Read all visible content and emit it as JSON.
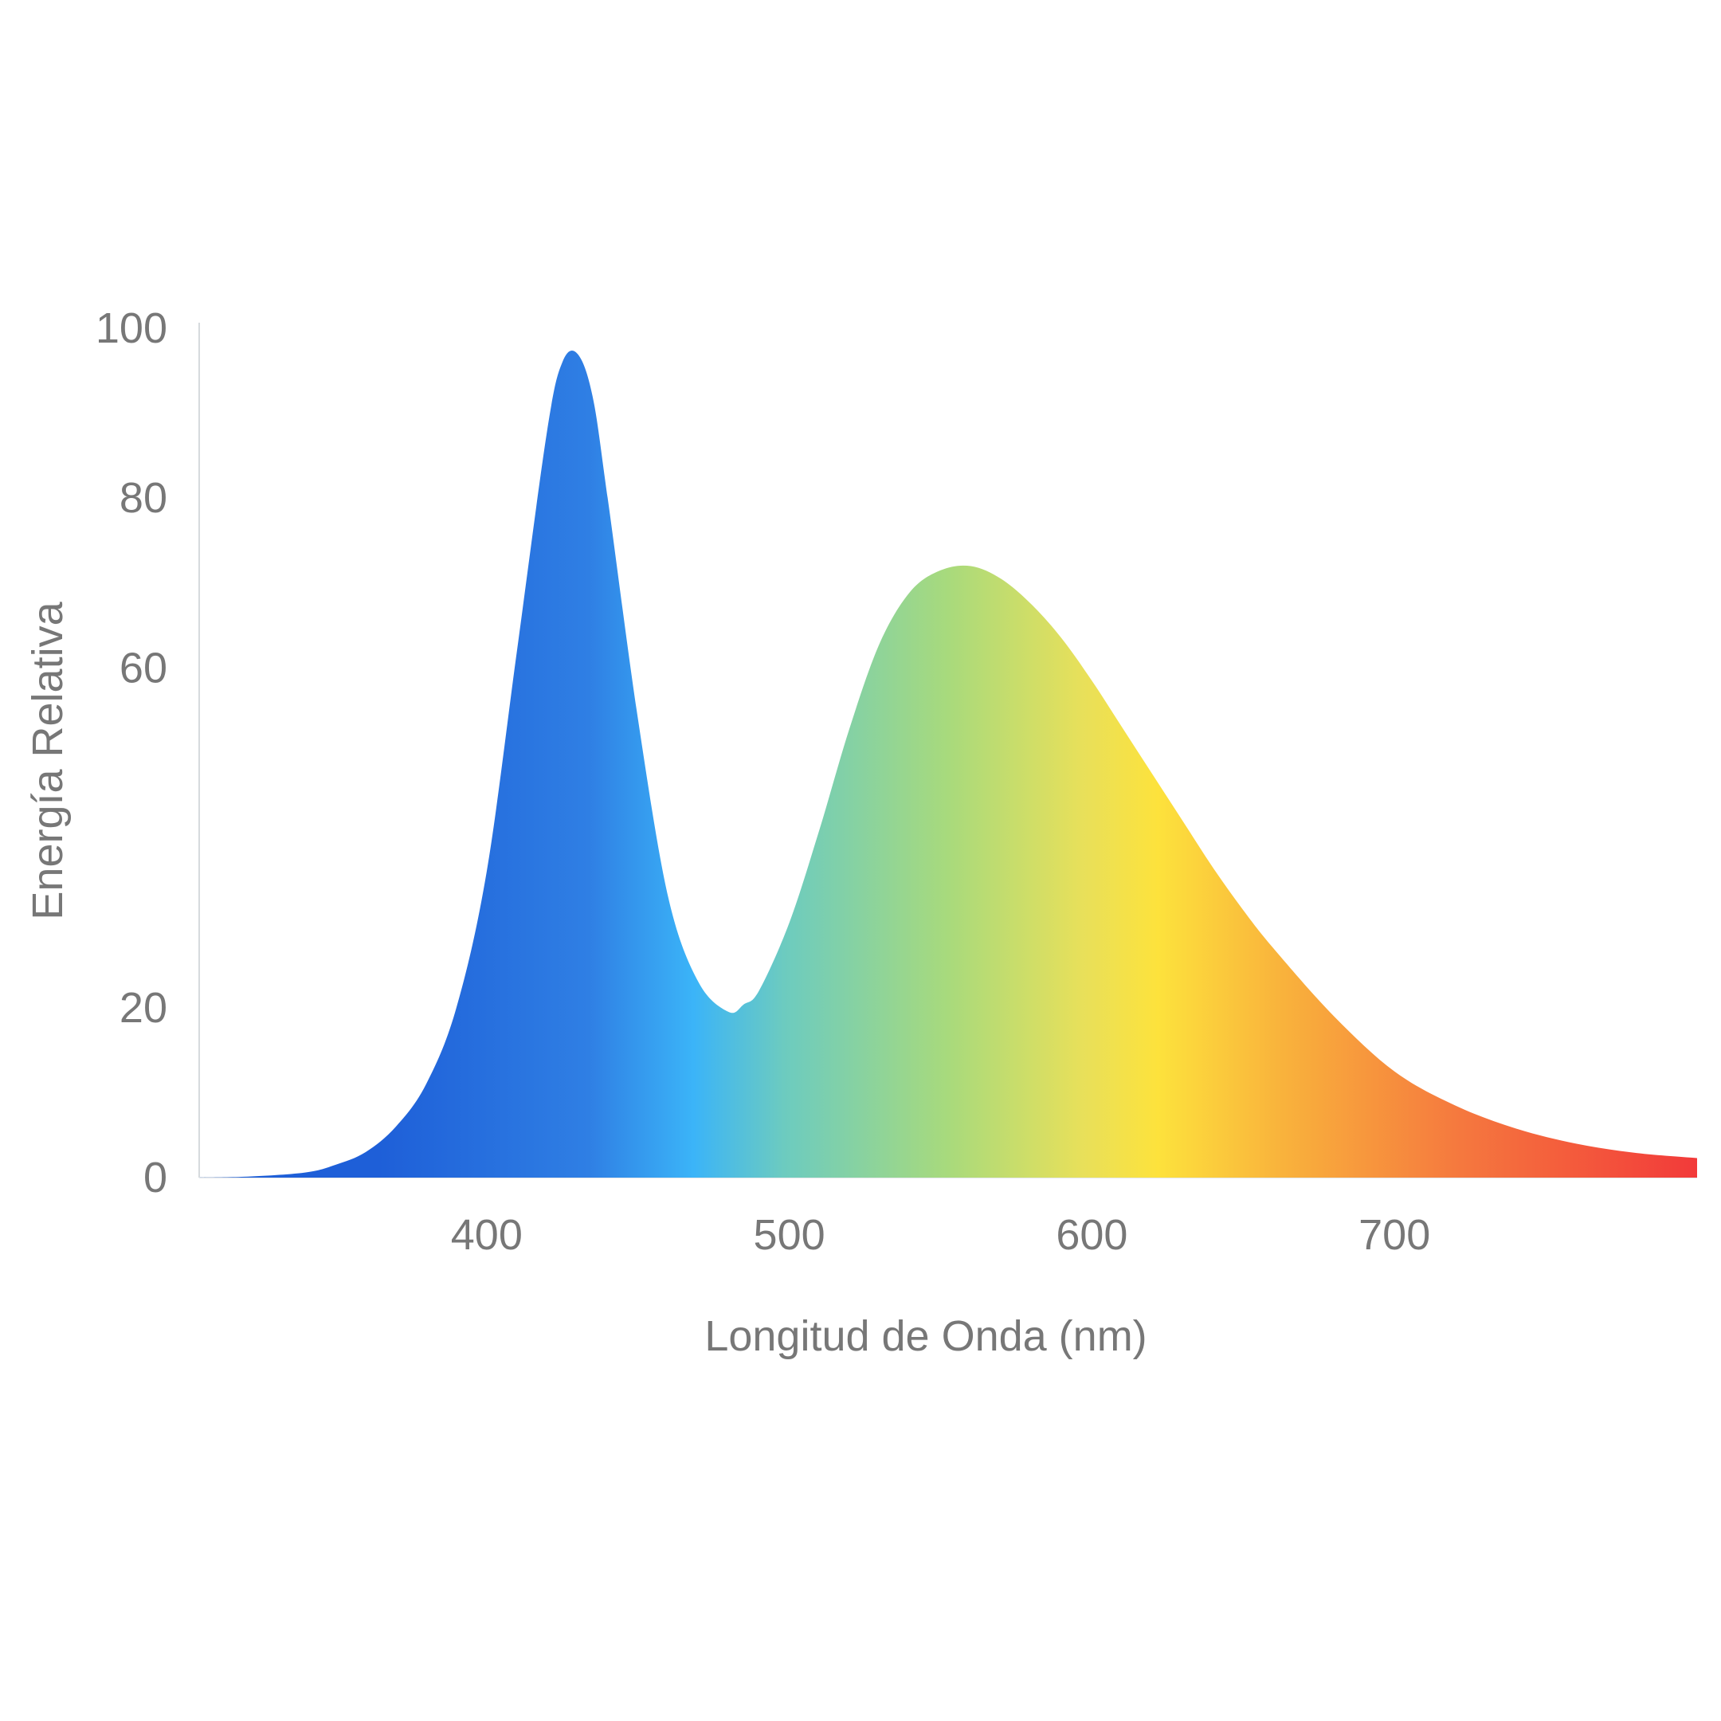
{
  "chart_data": {
    "type": "area",
    "title": "",
    "xlabel": "Longitud de Onda (nm)",
    "ylabel": "Energía Relativa",
    "xlim": [
      305,
      800
    ],
    "ylim": [
      0,
      100
    ],
    "x_ticks": [
      400,
      500,
      600,
      700
    ],
    "x_tick_labels": [
      "400",
      "500",
      "600",
      "700"
    ],
    "y_ticks": [
      0,
      20,
      60,
      80,
      100
    ],
    "y_tick_labels": [
      "0",
      "20",
      "60",
      "80",
      "100"
    ],
    "grid": false,
    "legend": "none",
    "series": [
      {
        "x": [
          305,
          320,
          340,
          350,
          360,
          370,
          380,
          390,
          400,
          410,
          420,
          425,
          430,
          435,
          440,
          450,
          460,
          470,
          480,
          485,
          490,
          500,
          510,
          520,
          530,
          540,
          550,
          560,
          570,
          580,
          590,
          600,
          610,
          620,
          630,
          640,
          650,
          660,
          680,
          700,
          720,
          740,
          760,
          780,
          800
        ],
        "values": [
          0,
          0.1,
          0.6,
          1.5,
          3,
          6,
          11,
          20,
          36,
          62,
          88,
          96,
          97,
          92,
          80,
          54,
          33,
          23,
          19.5,
          20.4,
          22,
          30,
          41,
          53,
          63,
          69,
          71.5,
          72,
          70.5,
          67.5,
          63.5,
          58.5,
          53,
          47.5,
          42,
          36.5,
          31.5,
          27,
          19,
          12.5,
          8.5,
          5.8,
          4,
          2.9,
          2.3
        ]
      }
    ],
    "colors": {
      "violet_blue": "#1e5fd8",
      "blue": "#2f7fe4",
      "sky": "#3bb4f8",
      "teal": "#6ccbc0",
      "green": "#a8da7c",
      "yellow": "#fde23c",
      "orange": "#f89b3c",
      "red": "#f23a3a",
      "axis_text": "#777777",
      "axis_line": "#d6dadd"
    }
  }
}
